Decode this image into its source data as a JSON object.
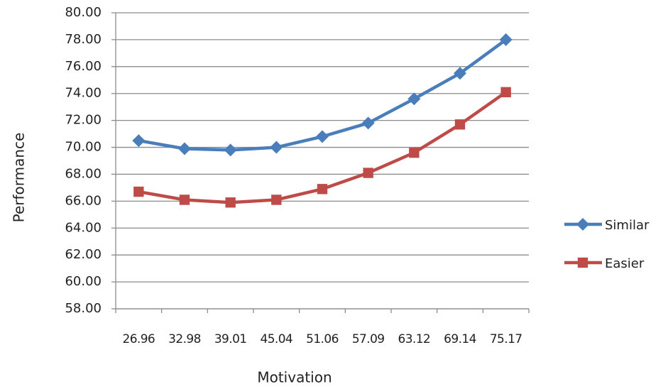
{
  "chart_data": {
    "type": "line",
    "x_label": "Motivation",
    "y_label": "Performance",
    "categories": [
      "26.96",
      "32.98",
      "39.01",
      "45.04",
      "51.06",
      "57.09",
      "63.12",
      "69.14",
      "75.17"
    ],
    "series": [
      {
        "name": "Similar",
        "color": "#4a7ebb",
        "marker": "diamond",
        "values": [
          70.5,
          69.9,
          69.8,
          70.0,
          70.8,
          71.8,
          73.6,
          75.5,
          78.0
        ]
      },
      {
        "name": "Easier",
        "color": "#be4b48",
        "marker": "square",
        "values": [
          66.7,
          66.1,
          65.9,
          66.1,
          66.9,
          68.1,
          69.6,
          71.7,
          74.1
        ]
      }
    ],
    "ylim": [
      58,
      80
    ],
    "yticks": [
      {
        "value": 58,
        "label": "58.00"
      },
      {
        "value": 60,
        "label": "60.00"
      },
      {
        "value": 62,
        "label": "62.00"
      },
      {
        "value": 64,
        "label": "64.00"
      },
      {
        "value": 66,
        "label": "66.00"
      },
      {
        "value": 68,
        "label": "68.00"
      },
      {
        "value": 70,
        "label": "70.00"
      },
      {
        "value": 72,
        "label": "72.00"
      },
      {
        "value": 74,
        "label": "74.00"
      },
      {
        "value": 76,
        "label": "76.00"
      },
      {
        "value": 78,
        "label": "78.00"
      },
      {
        "value": 80,
        "label": "80.00"
      }
    ],
    "grid": true,
    "legend": "right"
  }
}
